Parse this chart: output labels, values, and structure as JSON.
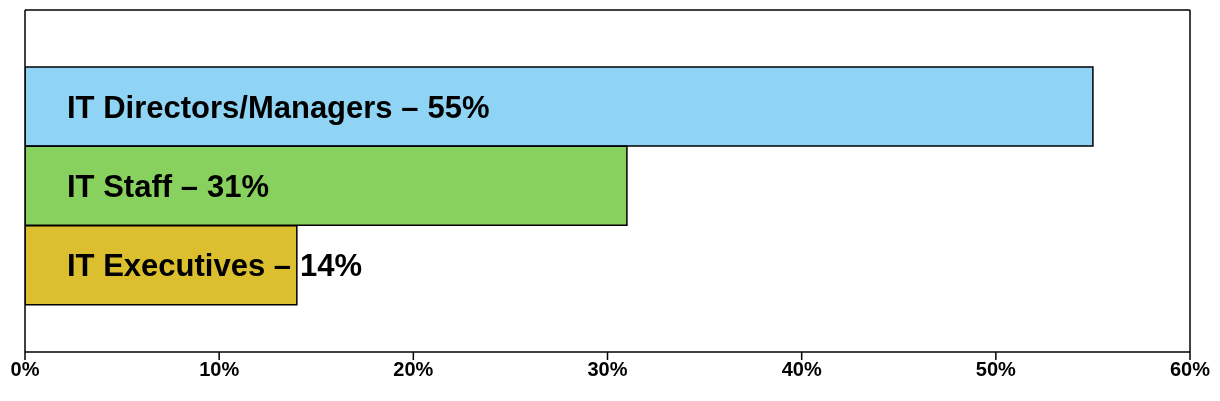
{
  "chart_data": {
    "type": "bar",
    "orientation": "horizontal",
    "categories": [
      "IT Directors/Managers –",
      "IT Staff –",
      "IT Executives –"
    ],
    "values": [
      55,
      31,
      14
    ],
    "colors": [
      "#8fd4f4",
      "#88d15e",
      "#dbbf2e"
    ],
    "value_labels": [
      "55%",
      "31%",
      "14%"
    ],
    "xlim": [
      0,
      60
    ],
    "xticks": [
      {
        "value": 0,
        "label": "0%"
      },
      {
        "value": 10,
        "label": "10%"
      },
      {
        "value": 20,
        "label": "20%"
      },
      {
        "value": 30,
        "label": "30%"
      },
      {
        "value": 40,
        "label": "40%"
      },
      {
        "value": 50,
        "label": "50%"
      },
      {
        "value": 60,
        "label": "60%"
      }
    ],
    "grid": false,
    "legend": false
  }
}
